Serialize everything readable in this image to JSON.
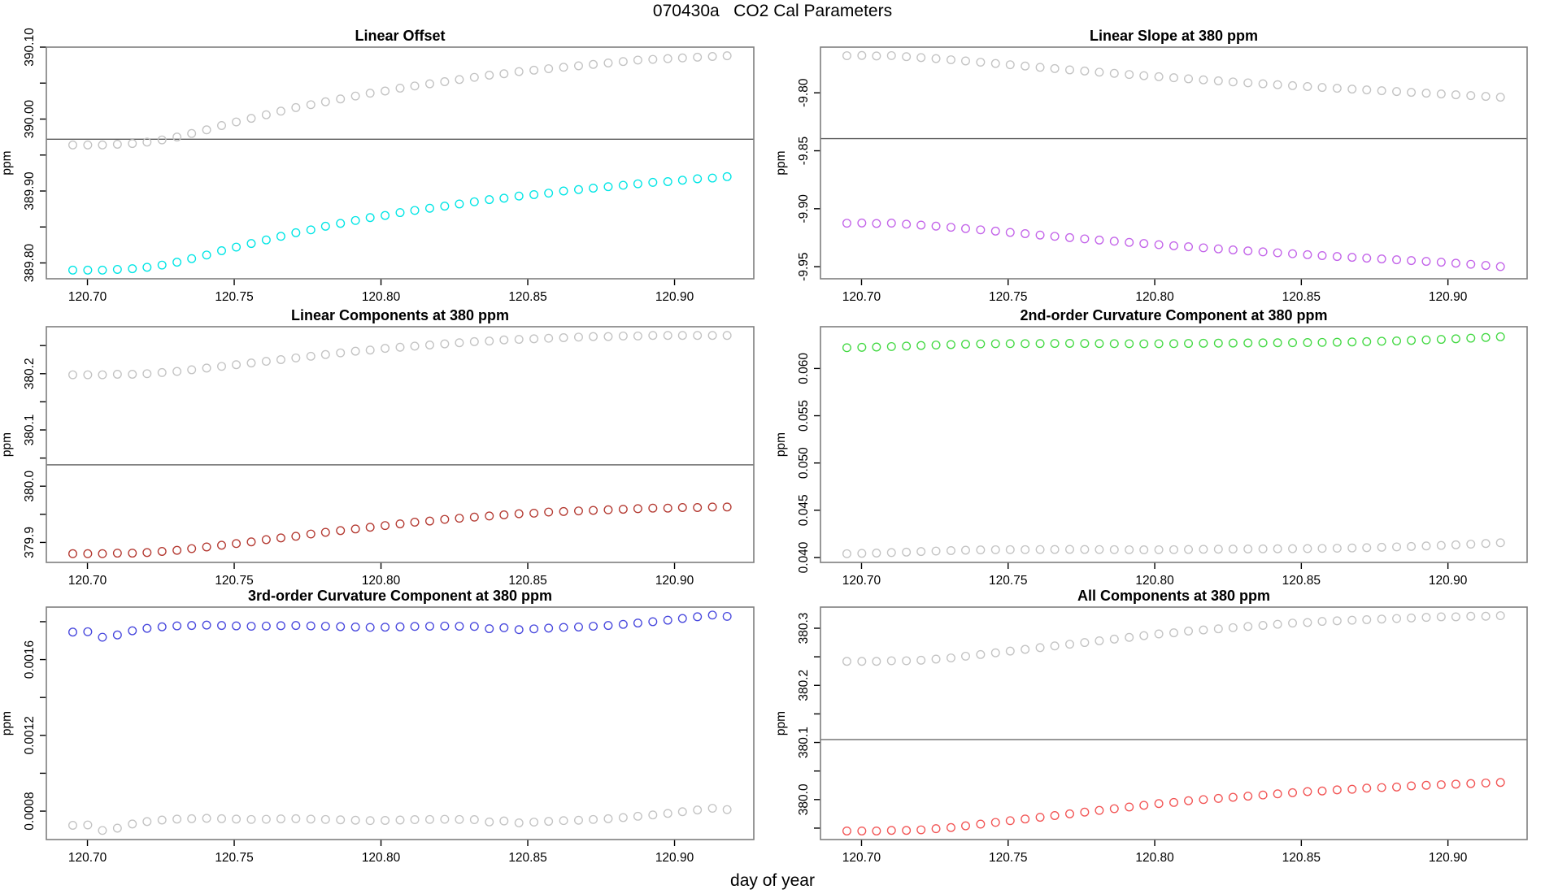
{
  "figure_title": "070430a   CO2 Cal Parameters",
  "colors": {
    "background": "#ffffff",
    "panel_border": "#7f7f7f",
    "tick_text": "#000000",
    "reference_line": "#5a5a5a",
    "gray_points": "#c3c3c3",
    "cyan_points": "#00e5e5",
    "magenta_points": "#c364e9",
    "dark_red_points": "#b43a32",
    "green_points": "#44d944",
    "blue_points": "#4848dd",
    "red_points": "#f25555"
  },
  "chart_data": {
    "type": "scatter",
    "grid": "2x3",
    "xlabel": "day of year",
    "xlim": [
      120.686,
      120.927
    ],
    "xticks": [
      {
        "v": 120.7,
        "label": "120.70"
      },
      {
        "v": 120.75,
        "label": "120.75"
      },
      {
        "v": 120.8,
        "label": "120.80"
      },
      {
        "v": 120.85,
        "label": "120.85"
      },
      {
        "v": 120.9,
        "label": "120.90"
      }
    ],
    "shared_x": [
      120.695,
      120.7001,
      120.7051,
      120.7102,
      120.7153,
      120.7203,
      120.7254,
      120.7305,
      120.7355,
      120.7406,
      120.7457,
      120.7507,
      120.7558,
      120.7609,
      120.7659,
      120.771,
      120.7761,
      120.7811,
      120.7862,
      120.7913,
      120.7963,
      120.8014,
      120.8065,
      120.8115,
      120.8166,
      120.8217,
      120.8267,
      120.8318,
      120.8369,
      120.8419,
      120.847,
      120.8521,
      120.8571,
      120.8622,
      120.8673,
      120.8723,
      120.8774,
      120.8825,
      120.8875,
      120.8926,
      120.8977,
      120.9027,
      120.9078,
      120.9129,
      120.9179
    ],
    "panels": [
      {
        "title": "Linear Offset",
        "ylabel": "ppm",
        "ylim": [
          389.778,
          390.1
        ],
        "hline": 389.972,
        "yticks": [
          {
            "v": 389.8,
            "label": "389.80"
          },
          {
            "v": 389.85,
            "label": ""
          },
          {
            "v": 389.9,
            "label": "389.90"
          },
          {
            "v": 389.95,
            "label": ""
          },
          {
            "v": 390.0,
            "label": "390.00"
          },
          {
            "v": 390.05,
            "label": ""
          },
          {
            "v": 390.1,
            "label": "390.10"
          }
        ],
        "series": [
          {
            "name": "gray",
            "color": "#c3c3c3",
            "values": [
              389.964,
              389.964,
              389.964,
              389.965,
              389.966,
              389.968,
              389.971,
              389.975,
              389.98,
              389.985,
              389.991,
              389.996,
              390.001,
              390.006,
              390.011,
              390.016,
              390.02,
              390.024,
              390.028,
              390.032,
              390.036,
              390.039,
              390.043,
              390.046,
              390.049,
              390.052,
              390.055,
              390.058,
              390.061,
              390.063,
              390.066,
              390.068,
              390.07,
              390.072,
              390.074,
              390.076,
              390.078,
              390.08,
              390.082,
              390.083,
              390.084,
              390.085,
              390.086,
              390.087,
              390.088
            ]
          },
          {
            "name": "cyan",
            "color": "#00e5e5",
            "values": [
              389.79,
              389.79,
              389.79,
              389.791,
              389.792,
              389.794,
              389.797,
              389.801,
              389.806,
              389.811,
              389.817,
              389.822,
              389.827,
              389.832,
              389.837,
              389.842,
              389.846,
              389.851,
              389.855,
              389.859,
              389.863,
              389.866,
              389.87,
              389.873,
              389.876,
              389.879,
              389.882,
              389.885,
              389.888,
              389.89,
              389.893,
              389.895,
              389.897,
              389.9,
              389.902,
              389.904,
              389.906,
              389.908,
              389.91,
              389.912,
              389.913,
              389.915,
              389.917,
              389.918,
              389.92
            ]
          }
        ]
      },
      {
        "title": "Linear Slope at 380 ppm",
        "ylabel": "ppm",
        "ylim": [
          -9.9604,
          -9.7606
        ],
        "hline": -9.8395,
        "yticks": [
          {
            "v": -9.95,
            "label": "-9.95"
          },
          {
            "v": -9.9,
            "label": "-9.90"
          },
          {
            "v": -9.85,
            "label": "-9.85"
          },
          {
            "v": -9.8,
            "label": "-9.80"
          }
        ],
        "series": [
          {
            "name": "gray",
            "color": "#c3c3c3",
            "values": [
              -9.768,
              -9.7678,
              -9.7682,
              -9.7679,
              -9.7688,
              -9.7696,
              -9.7705,
              -9.7715,
              -9.7725,
              -9.7736,
              -9.7747,
              -9.7758,
              -9.7769,
              -9.778,
              -9.7791,
              -9.7802,
              -9.7812,
              -9.7822,
              -9.7832,
              -9.7842,
              -9.7852,
              -9.7861,
              -9.787,
              -9.7879,
              -9.7888,
              -9.7897,
              -9.7906,
              -9.7914,
              -9.7922,
              -9.793,
              -9.7938,
              -9.7946,
              -9.7954,
              -9.7961,
              -9.7968,
              -9.7975,
              -9.7982,
              -9.7989,
              -9.7996,
              -9.8003,
              -9.801,
              -9.8017,
              -9.8024,
              -9.8031,
              -9.8038
            ]
          },
          {
            "name": "magenta",
            "color": "#c364e9",
            "values": [
              -9.9125,
              -9.9123,
              -9.9127,
              -9.9124,
              -9.9133,
              -9.9141,
              -9.915,
              -9.916,
              -9.9171,
              -9.9182,
              -9.9193,
              -9.9204,
              -9.9215,
              -9.9227,
              -9.9238,
              -9.9249,
              -9.926,
              -9.927,
              -9.928,
              -9.929,
              -9.93,
              -9.931,
              -9.9319,
              -9.9328,
              -9.9337,
              -9.9346,
              -9.9355,
              -9.9364,
              -9.9372,
              -9.938,
              -9.9388,
              -9.9396,
              -9.9404,
              -9.9412,
              -9.9419,
              -9.9426,
              -9.9433,
              -9.944,
              -9.9447,
              -9.9454,
              -9.9461,
              -9.947,
              -9.9479,
              -9.9489,
              -9.9499
            ]
          }
        ]
      },
      {
        "title": "Linear Components at 380 ppm",
        "ylabel": "ppm",
        "ylim": [
          379.8645,
          380.2835
        ],
        "hline": 380.038,
        "yticks": [
          {
            "v": 379.9,
            "label": "379.9"
          },
          {
            "v": 379.95,
            "label": ""
          },
          {
            "v": 380.0,
            "label": "380.0"
          },
          {
            "v": 380.05,
            "label": ""
          },
          {
            "v": 380.1,
            "label": "380.1"
          },
          {
            "v": 380.15,
            "label": ""
          },
          {
            "v": 380.2,
            "label": "380.2"
          },
          {
            "v": 380.25,
            "label": ""
          }
        ],
        "series": [
          {
            "name": "gray",
            "color": "#c3c3c3",
            "values": [
              380.198,
              380.198,
              380.198,
              380.199,
              380.199,
              380.2,
              380.202,
              380.204,
              380.207,
              380.21,
              380.213,
              380.216,
              380.219,
              380.222,
              380.225,
              380.228,
              380.231,
              380.234,
              380.237,
              380.24,
              380.242,
              380.245,
              380.247,
              380.249,
              380.251,
              380.253,
              380.255,
              380.257,
              380.258,
              380.26,
              380.261,
              380.262,
              380.263,
              380.264,
              380.265,
              380.266,
              380.266,
              380.267,
              380.267,
              380.268,
              380.268,
              380.268,
              380.268,
              380.268,
              380.268
            ]
          },
          {
            "name": "dark_red",
            "color": "#b43a32",
            "values": [
              379.88,
              379.88,
              379.88,
              379.881,
              379.881,
              379.882,
              379.884,
              379.886,
              379.889,
              379.892,
              379.895,
              379.898,
              379.901,
              379.905,
              379.908,
              379.911,
              379.915,
              379.918,
              379.921,
              379.924,
              379.927,
              379.93,
              379.933,
              379.936,
              379.938,
              379.941,
              379.943,
              379.945,
              379.947,
              379.949,
              379.951,
              379.952,
              379.954,
              379.955,
              379.956,
              379.957,
              379.958,
              379.959,
              379.96,
              379.961,
              379.961,
              379.962,
              379.962,
              379.963,
              379.963
            ]
          }
        ]
      },
      {
        "title": "2nd-order Curvature Component at 380 ppm",
        "ylabel": "ppm",
        "ylim": [
          0.03948,
          0.06442
        ],
        "hline": null,
        "yticks": [
          {
            "v": 0.04,
            "label": "0.040"
          },
          {
            "v": 0.045,
            "label": "0.045"
          },
          {
            "v": 0.05,
            "label": "0.050"
          },
          {
            "v": 0.055,
            "label": "0.055"
          },
          {
            "v": 0.06,
            "label": "0.060"
          }
        ],
        "series": [
          {
            "name": "green",
            "color": "#44d944",
            "values": [
              0.0622,
              0.06224,
              0.06227,
              0.06232,
              0.06237,
              0.06243,
              0.06248,
              0.06253,
              0.06257,
              0.0626,
              0.06262,
              0.06263,
              0.06263,
              0.06264,
              0.06265,
              0.06266,
              0.06265,
              0.06264,
              0.06263,
              0.06262,
              0.06261,
              0.06262,
              0.06263,
              0.06265,
              0.06267,
              0.06268,
              0.06269,
              0.0627,
              0.06271,
              0.06272,
              0.06273,
              0.06274,
              0.06276,
              0.06278,
              0.06281,
              0.06284,
              0.06288,
              0.06292,
              0.06297,
              0.06302,
              0.06308,
              0.06314,
              0.06321,
              0.06328,
              0.06336
            ]
          },
          {
            "name": "gray",
            "color": "#c3c3c3",
            "values": [
              0.0404,
              0.04044,
              0.04047,
              0.04052,
              0.04057,
              0.04063,
              0.04068,
              0.04073,
              0.04077,
              0.0408,
              0.04082,
              0.04083,
              0.04083,
              0.04084,
              0.04085,
              0.04086,
              0.04085,
              0.04084,
              0.04083,
              0.04082,
              0.04081,
              0.04082,
              0.04083,
              0.04085,
              0.04087,
              0.04088,
              0.04089,
              0.0409,
              0.04091,
              0.04092,
              0.04093,
              0.04094,
              0.04096,
              0.04098,
              0.04101,
              0.04104,
              0.04108,
              0.04112,
              0.04117,
              0.04122,
              0.04128,
              0.04134,
              0.04141,
              0.04148,
              0.04156
            ]
          }
        ]
      },
      {
        "title": "3rd-order Curvature Component at 380 ppm",
        "ylabel": "ppm",
        "ylim": [
          0.00065,
          0.001877
        ],
        "hline": null,
        "yticks": [
          {
            "v": 0.0008,
            "label": "0.0008"
          },
          {
            "v": 0.001,
            "label": ""
          },
          {
            "v": 0.0012,
            "label": "0.0012"
          },
          {
            "v": 0.0014,
            "label": ""
          },
          {
            "v": 0.0016,
            "label": "0.0016"
          },
          {
            "v": 0.0018,
            "label": ""
          }
        ],
        "series": [
          {
            "name": "blue",
            "color": "#4848dd",
            "values": [
              0.001745,
              0.001747,
              0.001718,
              0.00173,
              0.001752,
              0.001765,
              0.001773,
              0.001778,
              0.00178,
              0.001782,
              0.00178,
              0.001778,
              0.001776,
              0.001777,
              0.001779,
              0.00178,
              0.001778,
              0.001776,
              0.001774,
              0.001772,
              0.00177,
              0.001771,
              0.001773,
              0.001775,
              0.001776,
              0.001777,
              0.001776,
              0.001775,
              0.001763,
              0.001768,
              0.001758,
              0.001762,
              0.001766,
              0.00177,
              0.001772,
              0.001776,
              0.00178,
              0.001786,
              0.001793,
              0.0018,
              0.001808,
              0.001817,
              0.001826,
              0.001835,
              0.001828
            ]
          },
          {
            "name": "gray",
            "color": "#c3c3c3",
            "values": [
              0.000725,
              0.000727,
              0.000698,
              0.00071,
              0.000732,
              0.000745,
              0.000753,
              0.000758,
              0.00076,
              0.000762,
              0.00076,
              0.000758,
              0.000756,
              0.000757,
              0.000759,
              0.00076,
              0.000758,
              0.000756,
              0.000754,
              0.000752,
              0.00075,
              0.000751,
              0.000753,
              0.000755,
              0.000756,
              0.000757,
              0.000756,
              0.000755,
              0.000743,
              0.000748,
              0.000738,
              0.000742,
              0.000746,
              0.00075,
              0.000752,
              0.000756,
              0.00076,
              0.000766,
              0.000773,
              0.00078,
              0.000788,
              0.000797,
              0.000806,
              0.000815,
              0.000808
            ]
          }
        ]
      },
      {
        "title": "All Components at 380 ppm",
        "ylabel": "ppm",
        "ylim": [
          379.93,
          380.337
        ],
        "hline": 380.105,
        "yticks": [
          {
            "v": 379.95,
            "label": ""
          },
          {
            "v": 380.0,
            "label": "380.0"
          },
          {
            "v": 380.05,
            "label": ""
          },
          {
            "v": 380.1,
            "label": "380.1"
          },
          {
            "v": 380.15,
            "label": ""
          },
          {
            "v": 380.2,
            "label": "380.2"
          },
          {
            "v": 380.25,
            "label": ""
          },
          {
            "v": 380.3,
            "label": "380.3"
          }
        ],
        "series": [
          {
            "name": "gray",
            "color": "#c3c3c3",
            "values": [
              380.242,
              380.242,
              380.242,
              380.243,
              380.243,
              380.244,
              380.246,
              380.248,
              380.251,
              380.254,
              380.257,
              380.26,
              380.263,
              380.266,
              380.269,
              380.272,
              380.275,
              380.278,
              380.281,
              380.284,
              380.287,
              380.29,
              380.292,
              380.295,
              380.297,
              380.299,
              380.301,
              380.303,
              380.305,
              380.307,
              380.309,
              380.31,
              380.312,
              380.313,
              380.314,
              380.315,
              380.316,
              380.317,
              380.318,
              380.319,
              380.32,
              380.32,
              380.321,
              380.321,
              380.322
            ]
          },
          {
            "name": "red",
            "color": "#f25555",
            "values": [
              379.945,
              379.945,
              379.945,
              379.946,
              379.946,
              379.947,
              379.949,
              379.951,
              379.954,
              379.957,
              379.96,
              379.963,
              379.966,
              379.969,
              379.972,
              379.975,
              379.978,
              379.981,
              379.984,
              379.987,
              379.99,
              379.993,
              379.995,
              379.998,
              380.0,
              380.002,
              380.004,
              380.006,
              380.008,
              380.01,
              380.012,
              380.014,
              380.015,
              380.017,
              380.018,
              380.02,
              380.021,
              380.022,
              380.024,
              380.025,
              380.026,
              380.027,
              380.028,
              380.029,
              380.03
            ]
          }
        ]
      }
    ]
  }
}
